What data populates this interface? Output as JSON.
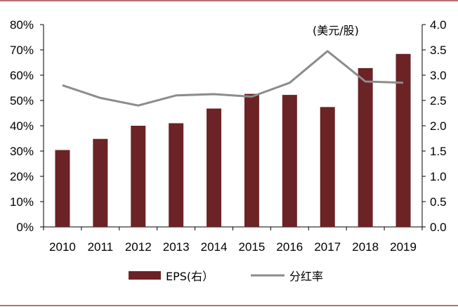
{
  "chart_data": {
    "type": "bar",
    "categories": [
      "2010",
      "2011",
      "2012",
      "2013",
      "2014",
      "2015",
      "2016",
      "2017",
      "2018",
      "2019"
    ],
    "series": [
      {
        "name": "EPS(右）",
        "type": "bar",
        "axis": "right",
        "color": "#6b2326",
        "values": [
          1.52,
          1.74,
          2.0,
          2.05,
          2.34,
          2.63,
          2.61,
          2.37,
          3.14,
          3.42
        ]
      },
      {
        "name": "分红率",
        "type": "line",
        "axis": "left",
        "color": "#8c8c8c",
        "values": [
          0.56,
          0.51,
          0.48,
          0.52,
          0.525,
          0.515,
          0.57,
          0.695,
          0.575,
          0.57
        ]
      }
    ],
    "y_left": {
      "ylim": [
        0,
        0.8
      ],
      "ticks": [
        0,
        0.1,
        0.2,
        0.3,
        0.4,
        0.5,
        0.6,
        0.7,
        0.8
      ],
      "tick_labels": [
        "0%",
        "10%",
        "20%",
        "30%",
        "40%",
        "50%",
        "60%",
        "70%",
        "80%"
      ]
    },
    "y_right": {
      "ylim": [
        0,
        4.0
      ],
      "ticks": [
        0,
        0.5,
        1.0,
        1.5,
        2.0,
        2.5,
        3.0,
        3.5,
        4.0
      ],
      "tick_labels": [
        "0.0",
        "0.5",
        "1.0",
        "1.5",
        "2.0",
        "2.5",
        "3.0",
        "3.5",
        "4.0"
      ],
      "unit_label": "(美元/股)"
    },
    "legend": {
      "position": "bottom",
      "entries": [
        "EPS(右）",
        "分红率"
      ]
    },
    "grid": false
  }
}
